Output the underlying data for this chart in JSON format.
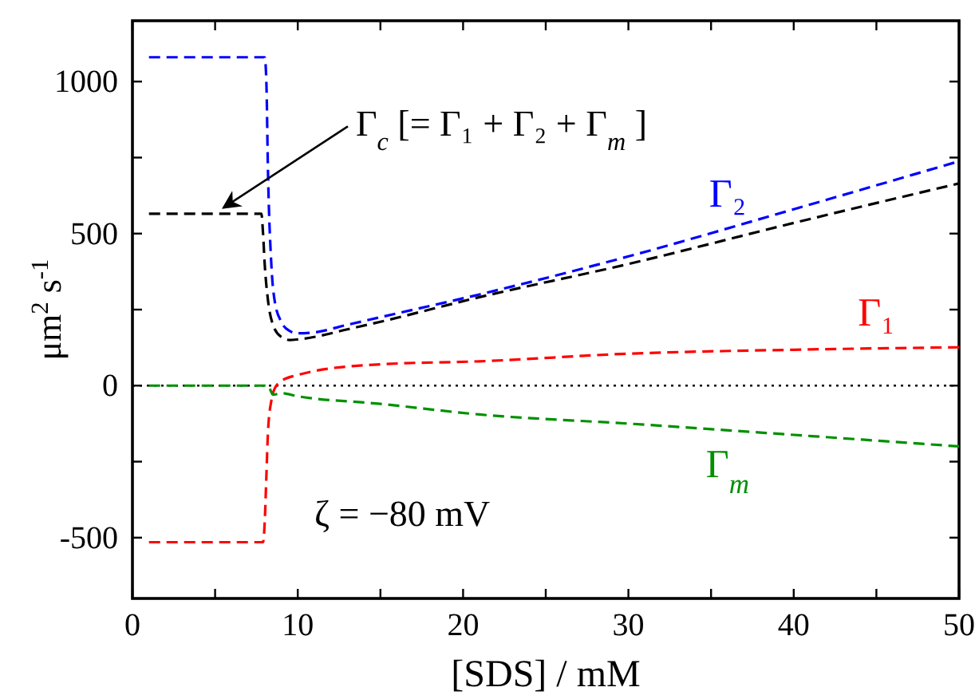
{
  "chart_data": {
    "type": "line",
    "xlabel": "[SDS] / mM",
    "ylabel": "μm$^{2}$ s$^{-1}$",
    "xlim": [
      0,
      50
    ],
    "xticks": [
      0,
      {
        "value": 5,
        "label": null
      },
      10,
      {
        "value": 15,
        "label": null
      },
      20,
      {
        "value": 25,
        "label": null
      },
      30,
      {
        "value": 35,
        "label": null
      },
      40,
      {
        "value": 45,
        "label": null
      },
      50
    ],
    "ylim": [
      -700,
      1200
    ],
    "yticks": [
      -500,
      {
        "value": -250,
        "label": null
      },
      0,
      {
        "value": 250,
        "label": null
      },
      500,
      {
        "value": 750,
        "label": null
      },
      1000
    ],
    "grid": false,
    "marker": "none",
    "line_style": "dashed",
    "series": [
      {
        "name": "Γ₂",
        "color": "#0000ff",
        "x": [
          1,
          8.0,
          8.1,
          8.2,
          8.4,
          8.6,
          9,
          9.5,
          10,
          11,
          13,
          15,
          21,
          30,
          40,
          50
        ],
        "values": [
          1080,
          1080,
          1000,
          700,
          400,
          280,
          210,
          180,
          172,
          175,
          200,
          225,
          300,
          425,
          580,
          738
        ]
      },
      {
        "color": "#000000",
        "x": [
          1,
          7.8,
          7.9,
          8.0,
          8.2,
          8.5,
          9,
          9.5,
          10,
          11,
          13,
          15,
          21,
          30,
          40,
          50
        ],
        "values": [
          565,
          565,
          500,
          400,
          280,
          200,
          160,
          150,
          152,
          160,
          185,
          210,
          291,
          400,
          535,
          665
        ]
      },
      {
        "name": "Γ₁",
        "color": "#ff0000",
        "x": [
          1,
          7.9,
          8.0,
          8.1,
          8.2,
          8.4,
          8.6,
          9,
          10,
          11,
          15,
          21,
          30,
          40,
          50
        ],
        "values": [
          -515,
          -515,
          -450,
          -300,
          -150,
          -50,
          -10,
          15,
          35,
          48,
          70,
          80,
          105,
          118,
          126
        ]
      },
      {
        "name": "Γ$_{m}$",
        "color": "#009000",
        "x": [
          1,
          8.2,
          8.5,
          9,
          10,
          15,
          21,
          30,
          40,
          50
        ],
        "values": [
          0,
          0,
          -30,
          -25,
          -35,
          -60,
          -95,
          -125,
          -162,
          -200
        ]
      }
    ],
    "ref_lines": [
      {
        "axis": "y",
        "value": 0,
        "color": "#000000",
        "line_style": "dotted"
      }
    ],
    "annotations": [
      {
        "text": "Γ$_{c}$  [= Γ₁ + Γ₂ + Γ$_{m}$ ]",
        "x": 5.5,
        "y": 585
      },
      "ζ = −80 mV"
    ]
  }
}
